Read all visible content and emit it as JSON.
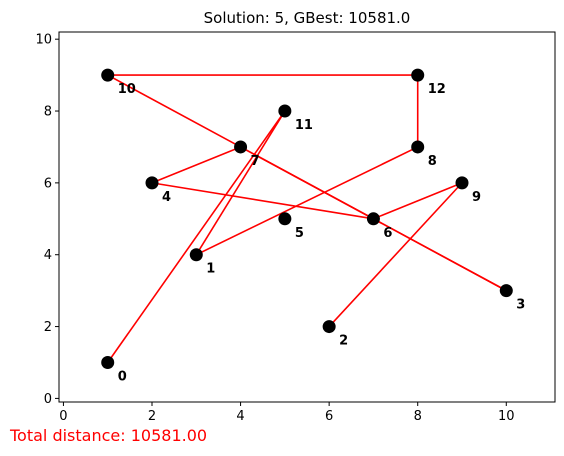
{
  "chart_data": {
    "type": "scatter",
    "title": "Solution: 5, GBest: 10581.0",
    "xlim": [
      -0.1,
      11.1
    ],
    "ylim": [
      -0.1,
      10.2
    ],
    "xticks": [
      0,
      2,
      4,
      6,
      8,
      10
    ],
    "yticks": [
      0,
      2,
      4,
      6,
      8,
      10
    ],
    "nodes": [
      {
        "id": "0",
        "x": 1,
        "y": 1
      },
      {
        "id": "1",
        "x": 3,
        "y": 4
      },
      {
        "id": "2",
        "x": 6,
        "y": 2
      },
      {
        "id": "3",
        "x": 10,
        "y": 3
      },
      {
        "id": "4",
        "x": 2,
        "y": 6
      },
      {
        "id": "5",
        "x": 5,
        "y": 5
      },
      {
        "id": "6",
        "x": 7,
        "y": 5
      },
      {
        "id": "7",
        "x": 4,
        "y": 7
      },
      {
        "id": "8",
        "x": 8,
        "y": 7
      },
      {
        "id": "9",
        "x": 9,
        "y": 6
      },
      {
        "id": "10",
        "x": 1,
        "y": 9
      },
      {
        "id": "11",
        "x": 5,
        "y": 8
      },
      {
        "id": "12",
        "x": 8,
        "y": 9
      }
    ],
    "route": [
      0,
      11,
      1,
      8,
      12,
      10,
      3,
      7,
      4,
      6,
      9,
      2
    ],
    "route_color": "#ff0000",
    "node_color": "#000000"
  },
  "footer": {
    "text": "Total distance: 10581.00"
  }
}
